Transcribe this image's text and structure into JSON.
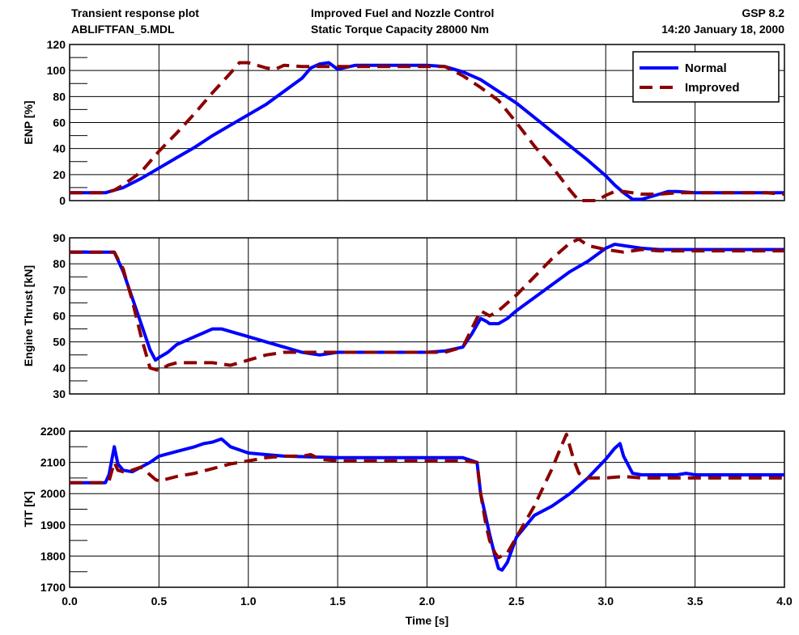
{
  "header": {
    "left_line1": "Transient response plot",
    "left_line2": "ABLIFTFAN_5.MDL",
    "center_line1": "Improved Fuel and Nozzle Control",
    "center_line2": "Static Torque Capacity 28000 Nm",
    "right_line1": "GSP 8.2",
    "right_line2": "14:20  January 18, 2000"
  },
  "colors": {
    "normal": "#0000ff",
    "improved": "#8b0000",
    "grid": "#000000"
  },
  "chart_data": [
    {
      "type": "line",
      "ylabel": "ENP [%]",
      "ylim": [
        0,
        120
      ],
      "yticks": [
        0,
        20,
        40,
        60,
        80,
        100,
        120
      ],
      "xlim": [
        0,
        4
      ],
      "grid": true,
      "legend": {
        "position": "top-right",
        "entries": [
          "Normal",
          "Improved"
        ]
      },
      "series": [
        {
          "name": "Normal",
          "x": [
            0,
            0.2,
            0.25,
            0.3,
            0.4,
            0.5,
            0.6,
            0.7,
            0.8,
            0.9,
            1.0,
            1.1,
            1.2,
            1.3,
            1.35,
            1.4,
            1.45,
            1.5,
            1.6,
            1.7,
            1.8,
            1.9,
            2.0,
            2.1,
            2.2,
            2.3,
            2.4,
            2.5,
            2.6,
            2.7,
            2.8,
            2.9,
            3.0,
            3.05,
            3.1,
            3.15,
            3.2,
            3.3,
            3.35,
            3.4,
            3.5,
            3.6,
            3.7,
            3.8,
            3.9,
            4.0
          ],
          "y": [
            6,
            6,
            8,
            10,
            17,
            25,
            33,
            41,
            50,
            58,
            66,
            74,
            84,
            94,
            102,
            105,
            106,
            101,
            104,
            104,
            104,
            104,
            104,
            103,
            99,
            93,
            84,
            75,
            64,
            53,
            42,
            31,
            19,
            12,
            6,
            1,
            1,
            5,
            7,
            7,
            6,
            6,
            6,
            6,
            6,
            6
          ]
        },
        {
          "name": "Improved",
          "x": [
            0,
            0.2,
            0.25,
            0.3,
            0.4,
            0.5,
            0.6,
            0.7,
            0.8,
            0.9,
            0.95,
            1.0,
            1.1,
            1.15,
            1.2,
            1.3,
            1.4,
            1.5,
            1.6,
            1.7,
            1.8,
            1.9,
            2.0,
            2.1,
            2.2,
            2.3,
            2.4,
            2.5,
            2.6,
            2.7,
            2.8,
            2.85,
            2.9,
            2.95,
            3.0,
            3.05,
            3.1,
            3.2,
            3.3,
            3.4,
            3.5,
            3.6,
            3.7,
            3.8,
            3.9,
            4.0
          ],
          "y": [
            6,
            6,
            8,
            12,
            22,
            38,
            52,
            67,
            83,
            98,
            106,
            106,
            102,
            101,
            104,
            103,
            103,
            103,
            103,
            103,
            103,
            103,
            103,
            103,
            96,
            87,
            77,
            60,
            42,
            26,
            8,
            0,
            0,
            0,
            4,
            7,
            7,
            5,
            5,
            6,
            6,
            6,
            6,
            6,
            6,
            5
          ]
        }
      ]
    },
    {
      "type": "line",
      "ylabel": "Engine Thrust [kN]",
      "ylim": [
        30,
        90
      ],
      "yticks": [
        30,
        40,
        50,
        60,
        70,
        80,
        90
      ],
      "xlim": [
        0,
        4
      ],
      "grid": true,
      "series": [
        {
          "name": "Normal",
          "x": [
            0,
            0.2,
            0.25,
            0.3,
            0.35,
            0.4,
            0.45,
            0.48,
            0.5,
            0.55,
            0.6,
            0.7,
            0.8,
            0.85,
            0.9,
            1.0,
            1.1,
            1.2,
            1.3,
            1.4,
            1.5,
            1.6,
            1.7,
            1.8,
            1.9,
            2.0,
            2.1,
            2.2,
            2.25,
            2.3,
            2.33,
            2.35,
            2.4,
            2.45,
            2.5,
            2.6,
            2.7,
            2.8,
            2.9,
            3.0,
            3.05,
            3.1,
            3.2,
            3.3,
            3.4,
            3.5,
            3.6,
            3.7,
            3.8,
            3.9,
            4.0
          ],
          "y": [
            84.5,
            84.5,
            84.5,
            77,
            67,
            57,
            47,
            43,
            44,
            46,
            49,
            52,
            55,
            55,
            54,
            52,
            50,
            48,
            46,
            45,
            46,
            46,
            46,
            46,
            46,
            46,
            46.5,
            48,
            53,
            59,
            58,
            57,
            57,
            59,
            62,
            67,
            72,
            77,
            81,
            86,
            87.5,
            87,
            86,
            85.5,
            85.5,
            85.5,
            85.5,
            85.5,
            85.5,
            85.5,
            85.5
          ]
        },
        {
          "name": "Improved",
          "x": [
            0,
            0.2,
            0.25,
            0.3,
            0.35,
            0.4,
            0.45,
            0.5,
            0.55,
            0.6,
            0.7,
            0.8,
            0.9,
            1.0,
            1.1,
            1.2,
            1.3,
            1.4,
            1.5,
            1.6,
            1.7,
            1.8,
            1.9,
            2.0,
            2.1,
            2.2,
            2.25,
            2.3,
            2.35,
            2.4,
            2.5,
            2.6,
            2.7,
            2.8,
            2.85,
            2.9,
            3.0,
            3.1,
            3.2,
            3.3,
            3.4,
            3.5,
            3.6,
            3.7,
            3.8,
            3.9,
            4.0
          ],
          "y": [
            84.5,
            84.5,
            84.5,
            78,
            66,
            52,
            40,
            39,
            41,
            42,
            42,
            42,
            41,
            43,
            45,
            46,
            46,
            46,
            46,
            46,
            46,
            46,
            46,
            46,
            46,
            48,
            55,
            62,
            60,
            62,
            68,
            75,
            82,
            88,
            89.5,
            87,
            85.5,
            84.5,
            85.5,
            85,
            85,
            85,
            85,
            85,
            85,
            85,
            85
          ]
        }
      ]
    },
    {
      "type": "line",
      "ylabel": "TIT [K]",
      "ylim": [
        1700,
        2200
      ],
      "yticks": [
        1700,
        1800,
        1900,
        2000,
        2100,
        2200
      ],
      "xlim": [
        0,
        4
      ],
      "xticks": [
        0.0,
        0.5,
        1.0,
        1.5,
        2.0,
        2.5,
        3.0,
        3.5,
        4.0
      ],
      "xlabel": "Time [s]",
      "grid": true,
      "series": [
        {
          "name": "Normal",
          "x": [
            0,
            0.2,
            0.22,
            0.25,
            0.27,
            0.3,
            0.35,
            0.4,
            0.45,
            0.5,
            0.6,
            0.7,
            0.75,
            0.8,
            0.85,
            0.9,
            1.0,
            1.1,
            1.2,
            1.5,
            2.0,
            2.2,
            2.28,
            2.3,
            2.35,
            2.38,
            2.4,
            2.42,
            2.45,
            2.5,
            2.6,
            2.7,
            2.8,
            2.9,
            3.0,
            3.05,
            3.08,
            3.1,
            3.15,
            3.2,
            3.4,
            3.45,
            3.5,
            4.0
          ],
          "y": [
            2035,
            2035,
            2060,
            2150,
            2095,
            2075,
            2070,
            2085,
            2100,
            2120,
            2135,
            2150,
            2160,
            2165,
            2175,
            2150,
            2130,
            2125,
            2120,
            2115,
            2115,
            2115,
            2100,
            2000,
            1870,
            1800,
            1760,
            1755,
            1780,
            1860,
            1930,
            1960,
            2000,
            2050,
            2110,
            2145,
            2160,
            2120,
            2065,
            2060,
            2060,
            2065,
            2060,
            2060
          ]
        },
        {
          "name": "Improved",
          "x": [
            0,
            0.2,
            0.22,
            0.25,
            0.27,
            0.3,
            0.35,
            0.4,
            0.45,
            0.48,
            0.5,
            0.6,
            0.7,
            0.8,
            0.9,
            1.0,
            1.1,
            1.2,
            1.3,
            1.35,
            1.4,
            1.5,
            2.0,
            2.2,
            2.28,
            2.3,
            2.33,
            2.35,
            2.38,
            2.4,
            2.45,
            2.5,
            2.6,
            2.7,
            2.75,
            2.78,
            2.8,
            2.82,
            2.85,
            2.9,
            3.0,
            3.1,
            3.2,
            3.5,
            4.0
          ],
          "y": [
            2035,
            2035,
            2040,
            2100,
            2075,
            2070,
            2075,
            2085,
            2060,
            2045,
            2040,
            2055,
            2065,
            2080,
            2095,
            2105,
            2115,
            2120,
            2120,
            2125,
            2110,
            2105,
            2105,
            2105,
            2100,
            2000,
            1900,
            1850,
            1810,
            1795,
            1810,
            1860,
            1960,
            2080,
            2150,
            2190,
            2150,
            2110,
            2065,
            2050,
            2050,
            2055,
            2050,
            2050,
            2050
          ]
        }
      ]
    }
  ]
}
